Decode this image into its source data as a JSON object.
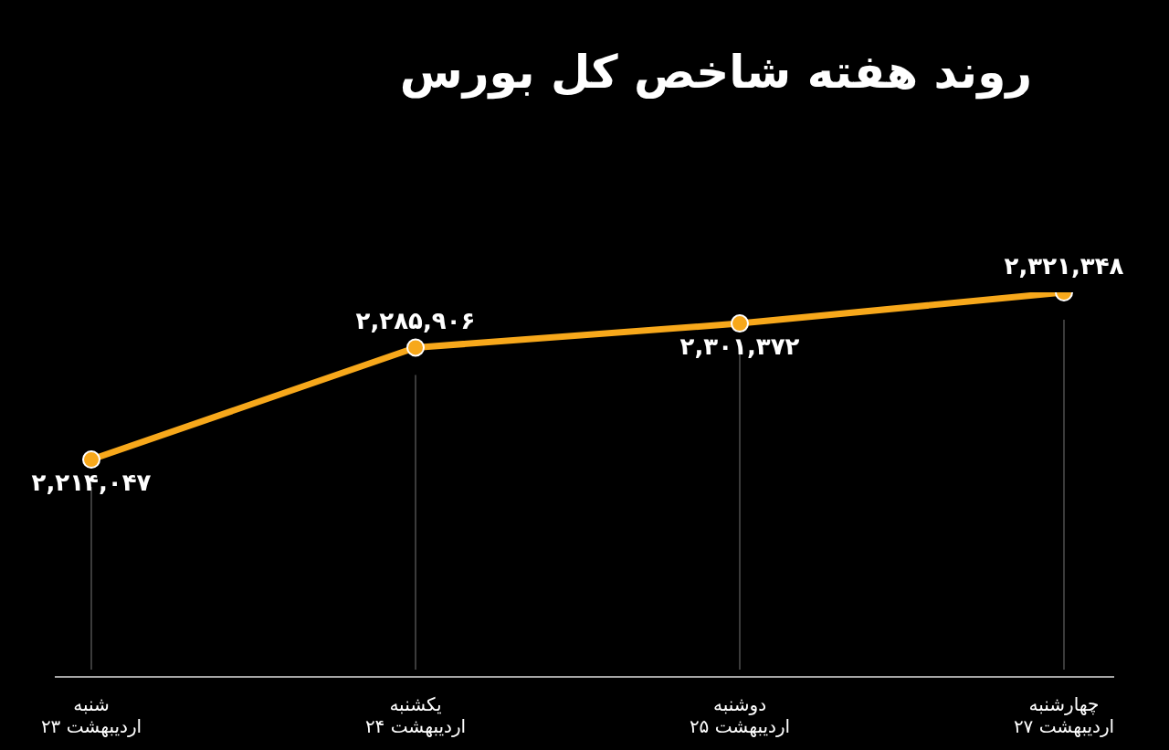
{
  "chart_data": {
    "type": "line",
    "title": "روند هفته شاخص کل بورس",
    "categories": [
      "شنبه\n۲۳ اردیبهشت",
      "یکشنبه\n۲۴ اردیبهشت",
      "دوشنبه\n۲۵ اردیبهشت",
      "چهارشنبه\n۲۷ اردیبهشت"
    ],
    "series": [
      {
        "color": "#f7a81b",
        "values": [
          2214047,
          2285906,
          2301372,
          2321348
        ],
        "value_labels": [
          "۲,۲۱۴,۰۴۷",
          "۲,۲۸۵,۹۰۶",
          "۲,۳۰۱,۳۷۲",
          "۲,۳۲۱,۳۴۸"
        ]
      }
    ],
    "marker": "circle",
    "line_style": "solid",
    "grid": "x",
    "legend": false
  }
}
